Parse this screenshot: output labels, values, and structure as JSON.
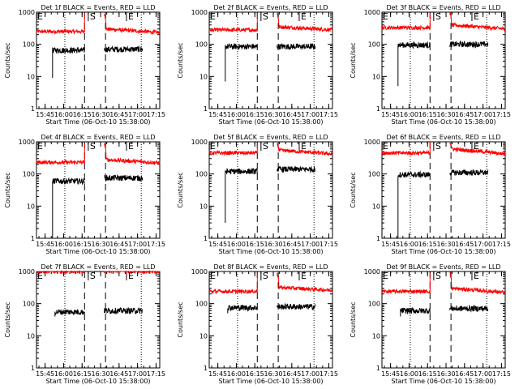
{
  "chart_data": [
    {
      "type": "line",
      "title": "Det 1f BLACK = Events, RED = LLD",
      "ylabel": "Counts/sec",
      "xlabel": "Start Time (06-Oct-10 15:38:00)",
      "y_scale": "log",
      "ylim": [
        1,
        1000
      ],
      "xlim": [
        "15:38",
        "17:18"
      ],
      "y_tick_labels": [
        "1",
        "10",
        "100",
        "1000"
      ],
      "x_tick_labels": [
        "15:45",
        "16:00",
        "16:15",
        "16:30",
        "16:45",
        "17:00",
        "17:15"
      ],
      "dotted_lines": [
        "16:01",
        "17:03"
      ],
      "dashed_lines": [
        "16:17",
        "16:34"
      ],
      "markers": {
        "start": "S",
        "end": "E",
        "start_at": "16:20",
        "end_at": "16:51"
      },
      "series": [
        {
          "color": "#ff0000",
          "start": "15:38",
          "end": "17:18",
          "gap": [
            "16:17",
            "16:33"
          ],
          "level_before": 250,
          "level_after": 300,
          "spike_at_gap_end": "900",
          "trend_after": "decline to 230"
        },
        {
          "color": "#000000",
          "start": "15:51",
          "end": "17:04",
          "gap": [
            "16:17",
            "16:33"
          ],
          "level_before": 65,
          "level_after": 70,
          "dip_at_start": 9
        }
      ]
    },
    {
      "type": "line",
      "title": "Det 2f BLACK = Events, RED = LLD",
      "ylabel": "Counts/sec",
      "xlabel": "Start Time (06-Oct-10 15:38:00)",
      "y_scale": "log",
      "ylim": [
        1,
        1000
      ],
      "xlim": [
        "15:38",
        "17:18"
      ],
      "y_tick_labels": [
        "1",
        "10",
        "100",
        "1000"
      ],
      "x_tick_labels": [
        "15:45",
        "16:00",
        "16:15",
        "16:30",
        "16:45",
        "17:00",
        "17:15"
      ],
      "dotted_lines": [
        "16:01",
        "17:03"
      ],
      "dashed_lines": [
        "16:17",
        "16:34"
      ],
      "markers": {
        "start": "S",
        "end": "E",
        "start_at": "16:20",
        "end_at": "16:51"
      },
      "series": [
        {
          "color": "#ff0000",
          "start": "15:38",
          "end": "17:18",
          "gap": [
            "16:17",
            "16:33"
          ],
          "level_before": 280,
          "level_after": 350,
          "spike_at_gap_end": "900",
          "trend_after": "decline to 280"
        },
        {
          "color": "#000000",
          "start": "15:51",
          "end": "17:04",
          "gap": [
            "16:17",
            "16:33"
          ],
          "level_before": 85,
          "level_after": 85,
          "dip_at_start": 7
        }
      ]
    },
    {
      "type": "line",
      "title": "Det 3f BLACK = Events, RED = LLD",
      "ylabel": "Counts/sec",
      "xlabel": "Start Time (06-Oct-10 15:38:00)",
      "y_scale": "log",
      "ylim": [
        1,
        1000
      ],
      "xlim": [
        "15:38",
        "17:18"
      ],
      "y_tick_labels": [
        "1",
        "10",
        "100",
        "1000"
      ],
      "x_tick_labels": [
        "15:45",
        "16:00",
        "16:15",
        "16:30",
        "16:45",
        "17:00",
        "17:15"
      ],
      "dotted_lines": [
        "16:01",
        "17:03"
      ],
      "dashed_lines": [
        "16:17",
        "16:34"
      ],
      "markers": {
        "start": "S",
        "end": "E",
        "start_at": "16:20",
        "end_at": "16:51"
      },
      "series": [
        {
          "color": "#ff0000",
          "start": "15:38",
          "end": "17:18",
          "gap": [
            "16:17",
            "16:33"
          ],
          "level_before": 330,
          "level_after": 400,
          "spike_at_gap_end": "900",
          "trend_after": "decline to 300"
        },
        {
          "color": "#000000",
          "start": "15:51",
          "end": "17:04",
          "gap": [
            "16:17",
            "16:33"
          ],
          "level_before": 95,
          "level_after": 100,
          "dip_at_start": 5
        }
      ]
    },
    {
      "type": "line",
      "title": "Det 4f BLACK = Events, RED = LLD",
      "ylabel": "Counts/sec",
      "xlabel": "Start Time (06-Oct-10 15:38:00)",
      "y_scale": "log",
      "ylim": [
        1,
        1000
      ],
      "xlim": [
        "15:38",
        "17:18"
      ],
      "y_tick_labels": [
        "1",
        "10",
        "100",
        "1000"
      ],
      "x_tick_labels": [
        "15:45",
        "16:00",
        "16:15",
        "16:30",
        "16:45",
        "17:00",
        "17:15"
      ],
      "dotted_lines": [
        "16:01",
        "17:03"
      ],
      "dashed_lines": [
        "16:17",
        "16:34"
      ],
      "markers": {
        "start": "S",
        "end": "E",
        "start_at": "16:20",
        "end_at": "16:51"
      },
      "series": [
        {
          "color": "#ff0000",
          "start": "15:38",
          "end": "17:18",
          "gap": [
            "16:17",
            "16:33"
          ],
          "level_before": 230,
          "level_after": 280,
          "spike_at_gap_end": "900",
          "trend_after": "decline to 220"
        },
        {
          "color": "#000000",
          "start": "15:51",
          "end": "17:04",
          "gap": [
            "16:17",
            "16:33"
          ],
          "level_before": 60,
          "level_after": 75,
          "dip_at_start": 1
        }
      ]
    },
    {
      "type": "line",
      "title": "Det 5f BLACK = Events, RED = LLD",
      "ylabel": "Counts/sec",
      "xlabel": "Start Time (06-Oct-10 15:38:00)",
      "y_scale": "log",
      "ylim": [
        1,
        1000
      ],
      "xlim": [
        "15:38",
        "17:18"
      ],
      "y_tick_labels": [
        "1",
        "10",
        "100",
        "1000"
      ],
      "x_tick_labels": [
        "15:45",
        "16:00",
        "16:15",
        "16:30",
        "16:45",
        "17:00",
        "17:15"
      ],
      "dotted_lines": [
        "16:01",
        "17:03"
      ],
      "dashed_lines": [
        "16:17",
        "16:34"
      ],
      "markers": {
        "start": "S",
        "end": "E",
        "start_at": "16:20",
        "end_at": "16:51"
      },
      "series": [
        {
          "color": "#ff0000",
          "start": "15:38",
          "end": "17:18",
          "gap": [
            "16:17",
            "16:33"
          ],
          "level_before": 450,
          "level_after": 550,
          "spike_at_gap_end": "900",
          "trend_after": "decline to 420"
        },
        {
          "color": "#000000",
          "start": "15:51",
          "end": "17:04",
          "gap": [
            "16:17",
            "16:33"
          ],
          "level_before": 120,
          "level_after": 140,
          "dip_at_start": 3
        }
      ]
    },
    {
      "type": "line",
      "title": "Det 6f BLACK = Events, RED = LLD",
      "ylabel": "Counts/sec",
      "xlabel": "Start Time (06-Oct-10 15:38:00)",
      "y_scale": "log",
      "ylim": [
        1,
        1000
      ],
      "xlim": [
        "15:38",
        "17:18"
      ],
      "y_tick_labels": [
        "1",
        "10",
        "100",
        "1000"
      ],
      "x_tick_labels": [
        "15:45",
        "16:00",
        "16:15",
        "16:30",
        "16:45",
        "17:00",
        "17:15"
      ],
      "dotted_lines": [
        "16:01",
        "17:03"
      ],
      "dashed_lines": [
        "16:17",
        "16:34"
      ],
      "markers": {
        "start": "S",
        "end": "E",
        "start_at": "16:20",
        "end_at": "16:51"
      },
      "series": [
        {
          "color": "#ff0000",
          "start": "15:38",
          "end": "17:18",
          "gap": [
            "16:17",
            "16:33"
          ],
          "level_before": 450,
          "level_after": 600,
          "spike_at_gap_end": "1000",
          "trend_after": "decline to 420"
        },
        {
          "color": "#000000",
          "start": "15:51",
          "end": "17:04",
          "gap": [
            "16:17",
            "16:33"
          ],
          "level_before": 95,
          "level_after": 110,
          "dip_at_start": 1
        }
      ]
    },
    {
      "type": "line",
      "title": "Det 7f BLACK = Events, RED = LLD",
      "ylabel": "Counts/sec",
      "xlabel": "Start Time (06-Oct-10 15:38:00)",
      "y_scale": "log",
      "ylim": [
        1,
        1000
      ],
      "xlim": [
        "15:38",
        "17:18"
      ],
      "y_tick_labels": [
        "1",
        "10",
        "100",
        "1000"
      ],
      "x_tick_labels": [
        "15:45",
        "16:00",
        "16:15",
        "16:30",
        "16:45",
        "17:00",
        "17:15"
      ],
      "dotted_lines": [
        "16:01",
        "17:03"
      ],
      "dashed_lines": [
        "16:17",
        "16:34"
      ],
      "markers": {
        "start": "S",
        "end": "E",
        "start_at": "16:20",
        "end_at": "16:51"
      },
      "series": [
        {
          "color": "#ff0000",
          "start": "15:38",
          "end": "17:18",
          "gap": [
            "16:17",
            "16:33"
          ],
          "level_before": 1000,
          "level_after": 1050,
          "spike_at_gap_end": "1000",
          "trend_after": "flat near 1000"
        },
        {
          "color": "#000000",
          "start": "15:53",
          "end": "17:04",
          "gap": [
            "16:17",
            "16:33"
          ],
          "level_before": 55,
          "level_after": 60,
          "dip_at_start": 40
        }
      ]
    },
    {
      "type": "line",
      "title": "Det 8f BLACK = Events, RED = LLD",
      "ylabel": "Counts/sec",
      "xlabel": "Start Time (06-Oct-10 15:38:00)",
      "y_scale": "log",
      "ylim": [
        1,
        1000
      ],
      "xlim": [
        "15:38",
        "17:18"
      ],
      "y_tick_labels": [
        "1",
        "10",
        "100",
        "1000"
      ],
      "x_tick_labels": [
        "15:45",
        "16:00",
        "16:15",
        "16:30",
        "16:45",
        "17:00",
        "17:15"
      ],
      "dotted_lines": [
        "16:01",
        "17:03"
      ],
      "dashed_lines": [
        "16:17",
        "16:34"
      ],
      "markers": {
        "start": "S",
        "end": "E",
        "start_at": "16:20",
        "end_at": "16:51"
      },
      "series": [
        {
          "color": "#ff0000",
          "start": "15:38",
          "end": "17:18",
          "gap": [
            "16:17",
            "16:33"
          ],
          "level_before": 240,
          "level_after": 320,
          "spike_at_gap_end": "900",
          "trend_after": "decline to 260"
        },
        {
          "color": "#000000",
          "start": "15:53",
          "end": "17:04",
          "gap": [
            "16:17",
            "16:33"
          ],
          "level_before": 75,
          "level_after": 80,
          "dip_at_start": 50
        }
      ]
    },
    {
      "type": "line",
      "title": "Det 9f BLACK = Events, RED = LLD",
      "ylabel": "Counts/sec",
      "xlabel": "Start Time (06-Oct-10 15:38:00)",
      "y_scale": "log",
      "ylim": [
        1,
        1000
      ],
      "xlim": [
        "15:38",
        "17:18"
      ],
      "y_tick_labels": [
        "1",
        "10",
        "100",
        "1000"
      ],
      "x_tick_labels": [
        "15:45",
        "16:00",
        "16:15",
        "16:30",
        "16:45",
        "17:00",
        "17:15"
      ],
      "dotted_lines": [
        "16:01",
        "17:03"
      ],
      "dashed_lines": [
        "16:17",
        "16:34"
      ],
      "markers": {
        "start": "S",
        "end": "E",
        "start_at": "16:20",
        "end_at": "16:51"
      },
      "series": [
        {
          "color": "#ff0000",
          "start": "15:38",
          "end": "17:18",
          "gap": [
            "16:17",
            "16:33"
          ],
          "level_before": 240,
          "level_after": 300,
          "spike_at_gap_end": "900",
          "trend_after": "decline to 220"
        },
        {
          "color": "#000000",
          "start": "15:53",
          "end": "17:04",
          "gap": [
            "16:17",
            "16:33"
          ],
          "level_before": 60,
          "level_after": 70,
          "dip_at_start": 40
        }
      ]
    }
  ]
}
